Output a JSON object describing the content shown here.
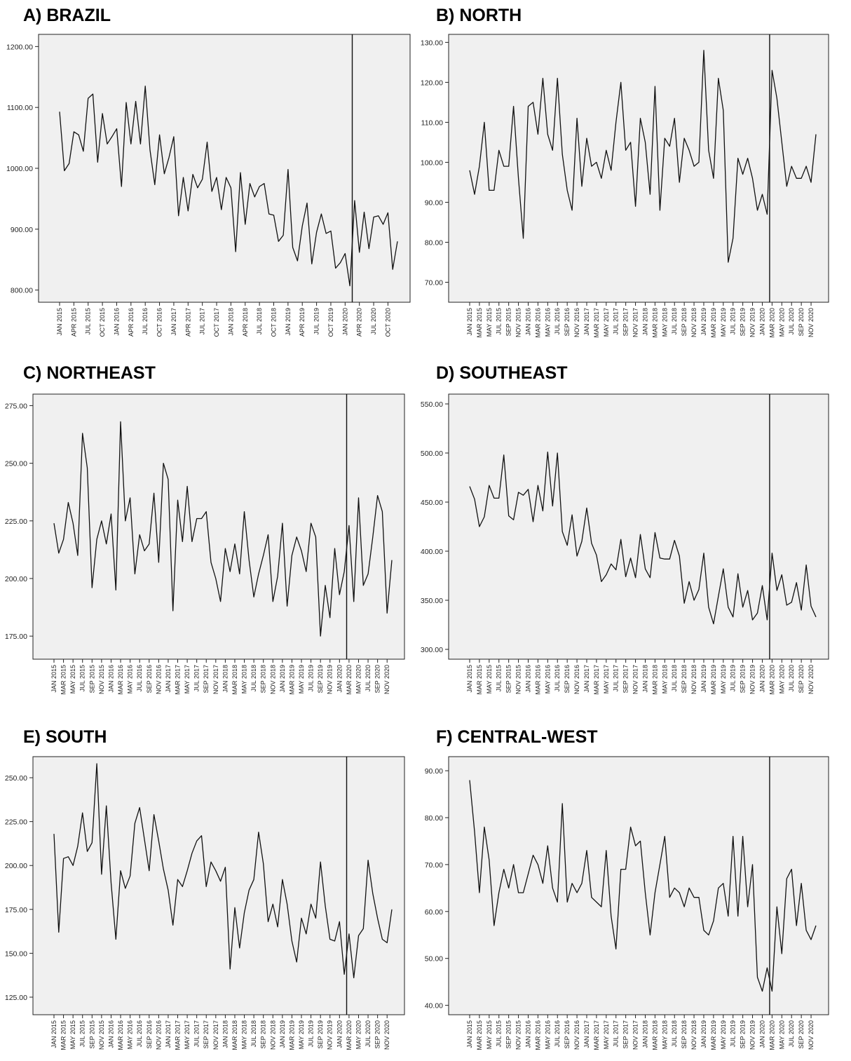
{
  "chart_data": [
    {
      "type": "line",
      "title": "A) BRAZIL",
      "ylim": [
        780,
        1220
      ],
      "yticks": [
        "800.00",
        "900.00",
        "1000.00",
        "1100.00",
        "1200.00"
      ],
      "xticks": [
        "JAN 2015",
        "APR 2015",
        "JUL 2015",
        "OCT 2015",
        "JAN 2016",
        "APR 2016",
        "JUL 2016",
        "OCT 2016",
        "JAN 2017",
        "APR 2017",
        "JUL 2017",
        "OCT 2017",
        "JAN 2018",
        "APR 2018",
        "JUL 2018",
        "OCT 2018",
        "JAN 2019",
        "APR 2019",
        "JUL 2019",
        "OCT 2019",
        "JAN 2020",
        "APR 2020",
        "JUL 2020",
        "OCT 2020"
      ],
      "xtick_step": 3,
      "intervention_index": 62,
      "grid": false,
      "values": [
        1093,
        996,
        1008,
        1060,
        1055,
        1028,
        1115,
        1122,
        1010,
        1090,
        1040,
        1052,
        1065,
        970,
        1108,
        1040,
        1110,
        1040,
        1135,
        1030,
        973,
        1055,
        991,
        1018,
        1052,
        922,
        985,
        930,
        990,
        968,
        982,
        1043,
        962,
        985,
        932,
        985,
        968,
        863,
        993,
        908,
        975,
        953,
        970,
        975,
        925,
        923,
        880,
        890,
        998,
        870,
        848,
        905,
        943,
        843,
        895,
        925,
        893,
        897,
        836,
        845,
        860,
        807,
        947,
        862,
        928,
        868,
        920,
        922,
        908,
        927,
        834,
        880
      ]
    },
    {
      "type": "line",
      "title": "B) NORTH",
      "ylim": [
        65,
        132
      ],
      "yticks": [
        "70.00",
        "80.00",
        "90.00",
        "100.00",
        "110.00",
        "120.00",
        "130.00"
      ],
      "xticks": [
        "JAN 2015",
        "MAR 2015",
        "MAY 2015",
        "JUL 2015",
        "SEP 2015",
        "NOV 2015",
        "JAN 2016",
        "MAR 2016",
        "MAY 2016",
        "JUL 2016",
        "SEP 2016",
        "NOV 2016",
        "JAN 2017",
        "MAR 2017",
        "MAY 2017",
        "JUL 2017",
        "SEP 2017",
        "NOV 2017",
        "JAN 2018",
        "MAR 2018",
        "MAY 2018",
        "JUL 2018",
        "SEP 2018",
        "NOV 2018",
        "JAN 2019",
        "MAR 2019",
        "MAY 2019",
        "JUL 2019",
        "SEP 2019",
        "NOV 2019",
        "JAN 2020",
        "MAR 2020",
        "MAY 2020",
        "JUL 2020",
        "SEP 2020",
        "NOV 2020"
      ],
      "xtick_step": 2,
      "intervention_index": 62,
      "grid": false,
      "values": [
        98,
        92,
        99,
        110,
        93,
        93,
        103,
        99,
        99,
        114,
        96,
        81,
        114,
        115,
        107,
        121,
        107,
        103,
        121,
        102,
        93,
        88,
        111,
        94,
        106,
        99,
        100,
        96,
        103,
        98,
        110,
        120,
        103,
        105,
        89,
        111,
        105,
        92,
        119,
        88,
        106,
        104,
        111,
        95,
        106,
        103,
        99,
        100,
        128,
        103,
        96,
        121,
        113,
        75,
        81,
        101,
        97,
        101,
        96,
        88,
        92,
        87,
        123,
        116,
        105,
        94,
        99,
        96,
        96,
        99,
        95,
        107
      ]
    },
    {
      "type": "line",
      "title": "C) NORTHEAST",
      "ylim": [
        165,
        280
      ],
      "yticks": [
        "175.00",
        "200.00",
        "225.00",
        "250.00",
        "275.00"
      ],
      "xticks": [
        "JAN 2015",
        "MAR 2015",
        "MAY 2015",
        "JUL 2015",
        "SEP 2015",
        "NOV 2015",
        "JAN 2016",
        "MAR 2016",
        "MAY 2016",
        "JUL 2016",
        "SEP 2016",
        "NOV 2016",
        "JAN 2017",
        "MAR 2017",
        "MAY 2017",
        "JUL 2017",
        "SEP 2017",
        "NOV 2017",
        "JAN 2018",
        "MAR 2018",
        "MAY 2018",
        "JUL 2018",
        "SEP 2018",
        "NOV 2018",
        "JAN 2019",
        "MAR 2019",
        "MAY 2019",
        "JUL 2019",
        "SEP 2019",
        "NOV 2019",
        "JAN 2020",
        "MAR 2020",
        "MAY 2020",
        "JUL 2020",
        "SEP 2020",
        "NOV 2020"
      ],
      "xtick_step": 2,
      "intervention_index": 62,
      "grid": false,
      "values": [
        224,
        211,
        217,
        233,
        224,
        210,
        263,
        248,
        196,
        217,
        225,
        215,
        228,
        195,
        268,
        225,
        235,
        202,
        219,
        212,
        215,
        237,
        207,
        250,
        243,
        186,
        234,
        216,
        240,
        216,
        226,
        226,
        229,
        207,
        200,
        190,
        213,
        203,
        215,
        202,
        229,
        208,
        192,
        202,
        210,
        219,
        190,
        201,
        224,
        188,
        210,
        218,
        212,
        203,
        224,
        218,
        175,
        197,
        183,
        213,
        193,
        203,
        223,
        190,
        235,
        197,
        202,
        218,
        236,
        229,
        185,
        208
      ]
    },
    {
      "type": "line",
      "title": "D) SOUTHEAST",
      "ylim": [
        290,
        560
      ],
      "yticks": [
        "300.00",
        "350.00",
        "400.00",
        "450.00",
        "500.00",
        "550.00"
      ],
      "xticks": [
        "JAN 2015",
        "MAR 2015",
        "MAY 2015",
        "JUL 2015",
        "SEP 2015",
        "NOV 2015",
        "JAN 2016",
        "MAR 2016",
        "MAY 2016",
        "JUL 2016",
        "SEP 2016",
        "NOV 2016",
        "JAN 2017",
        "MAR 2017",
        "MAY 2017",
        "JUL 2017",
        "SEP 2017",
        "NOV 2017",
        "JAN 2018",
        "MAR 2018",
        "MAY 2018",
        "JUL 2018",
        "SEP 2018",
        "NOV 2018",
        "JAN 2019",
        "MAR 2019",
        "MAY 2019",
        "JUL 2019",
        "SEP 2019",
        "NOV 2019",
        "JAN 2020",
        "MAR 2020",
        "MAY 2020",
        "JUL 2020",
        "SEP 2020",
        "NOV 2020"
      ],
      "xtick_step": 2,
      "intervention_index": 62,
      "grid": false,
      "values": [
        466,
        453,
        425,
        435,
        467,
        454,
        454,
        498,
        436,
        432,
        460,
        457,
        463,
        430,
        467,
        441,
        501,
        446,
        500,
        420,
        406,
        437,
        395,
        410,
        444,
        408,
        396,
        369,
        376,
        387,
        381,
        412,
        374,
        393,
        373,
        417,
        382,
        373,
        419,
        393,
        392,
        392,
        411,
        395,
        347,
        369,
        350,
        361,
        398,
        343,
        326,
        354,
        382,
        343,
        333,
        377,
        343,
        360,
        330,
        337,
        365,
        330,
        398,
        360,
        376,
        345,
        348,
        368,
        340,
        386,
        344,
        333
      ]
    },
    {
      "type": "line",
      "title": "E) SOUTH",
      "ylim": [
        115,
        262
      ],
      "yticks": [
        "125.00",
        "150.00",
        "175.00",
        "200.00",
        "225.00",
        "250.00"
      ],
      "xticks": [
        "JAN 2015",
        "MAR 2015",
        "MAY 2015",
        "JUL 2015",
        "SEP 2015",
        "NOV 2015",
        "JAN 2016",
        "MAR 2016",
        "MAY 2016",
        "JUL 2016",
        "SEP 2016",
        "NOV 2016",
        "JAN 2017",
        "MAR 2017",
        "MAY 2017",
        "JUL 2017",
        "SEP 2017",
        "NOV 2017",
        "JAN 2018",
        "MAR 2018",
        "MAY 2018",
        "JUL 2018",
        "SEP 2018",
        "NOV 2018",
        "JAN 2019",
        "MAR 2019",
        "MAY 2019",
        "JUL 2019",
        "SEP 2019",
        "NOV 2019",
        "JAN 2020",
        "MAR 2020",
        "MAY 2020",
        "JUL 2020",
        "SEP 2020",
        "NOV 2020"
      ],
      "xtick_step": 2,
      "intervention_index": 62,
      "grid": false,
      "values": [
        218,
        162,
        204,
        205,
        200,
        211,
        230,
        208,
        213,
        258,
        195,
        234,
        190,
        158,
        197,
        187,
        194,
        224,
        233,
        215,
        197,
        229,
        214,
        198,
        186,
        166,
        192,
        188,
        197,
        207,
        214,
        217,
        188,
        202,
        197,
        191,
        199,
        141,
        176,
        153,
        173,
        186,
        192,
        219,
        201,
        168,
        178,
        165,
        192,
        178,
        157,
        145,
        170,
        161,
        178,
        170,
        202,
        177,
        158,
        157,
        168,
        138,
        161,
        136,
        160,
        164,
        203,
        184,
        170,
        158,
        156,
        175
      ]
    },
    {
      "type": "line",
      "title": "F) CENTRAL-WEST",
      "ylim": [
        38,
        93
      ],
      "yticks": [
        "40.00",
        "50.00",
        "60.00",
        "70.00",
        "80.00",
        "90.00"
      ],
      "xticks": [
        "JAN 2015",
        "MAR 2015",
        "MAY 2015",
        "JUL 2015",
        "SEP 2015",
        "NOV 2015",
        "JAN 2016",
        "MAR 2016",
        "MAY 2016",
        "JUL 2016",
        "SEP 2016",
        "NOV 2016",
        "JAN 2017",
        "MAR 2017",
        "MAY 2017",
        "JUL 2017",
        "SEP 2017",
        "NOV 2017",
        "JAN 2018",
        "MAR 2018",
        "MAY 2018",
        "JUL 2018",
        "SEP 2018",
        "NOV 2018",
        "JAN 2019",
        "MAR 2019",
        "MAY 2019",
        "JUL 2019",
        "SEP 2019",
        "NOV 2019",
        "JAN 2020",
        "MAR 2020",
        "MAY 2020",
        "JUL 2020",
        "SEP 2020",
        "NOV 2020"
      ],
      "xtick_step": 2,
      "intervention_index": 62,
      "grid": false,
      "values": [
        88,
        77,
        64,
        78,
        71,
        57,
        64,
        69,
        65,
        70,
        64,
        64,
        68,
        72,
        70,
        66,
        74,
        65,
        62,
        83,
        62,
        66,
        64,
        66,
        73,
        63,
        62,
        61,
        73,
        59,
        52,
        69,
        69,
        78,
        74,
        75,
        64,
        55,
        64,
        70,
        76,
        63,
        65,
        64,
        61,
        65,
        63,
        63,
        56,
        55,
        58,
        65,
        66,
        59,
        76,
        59,
        76,
        61,
        70,
        46,
        43,
        48,
        43,
        61,
        51,
        67,
        69,
        57,
        66,
        56,
        54,
        57
      ]
    }
  ]
}
